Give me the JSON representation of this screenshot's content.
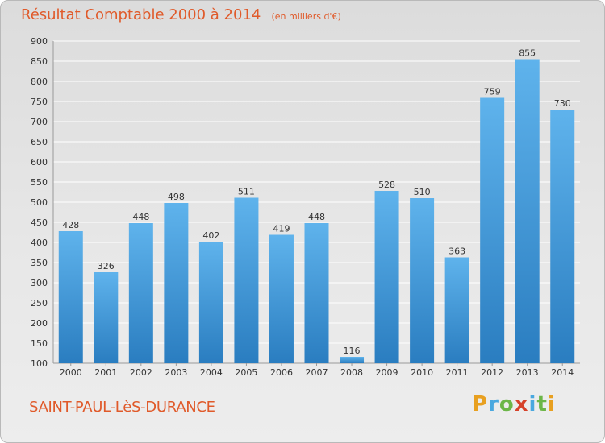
{
  "header": {
    "title": "Résultat Comptable 2000 à 2014",
    "unit": "(en milliers d'€)"
  },
  "footer": {
    "city": "SAINT-PAUL-LèS-DURANCE",
    "logo": "Proxiti"
  },
  "colors": {
    "bar_top": "#5fb3ec",
    "bar_bottom": "#2a7dc0",
    "title": "#e05a2a",
    "grid": "#ffffff"
  },
  "chart_data": {
    "type": "bar",
    "title": "Résultat Comptable 2000 à 2014",
    "xlabel": "",
    "ylabel": "",
    "ylim": [
      100,
      900
    ],
    "ytick_step": 50,
    "grid": true,
    "categories": [
      "2000",
      "2001",
      "2002",
      "2003",
      "2004",
      "2005",
      "2006",
      "2007",
      "2008",
      "2009",
      "2010",
      "2011",
      "2012",
      "2013",
      "2014"
    ],
    "values": [
      428,
      326,
      448,
      498,
      402,
      511,
      419,
      448,
      116,
      528,
      510,
      363,
      759,
      855,
      730
    ],
    "data_labels": true
  }
}
